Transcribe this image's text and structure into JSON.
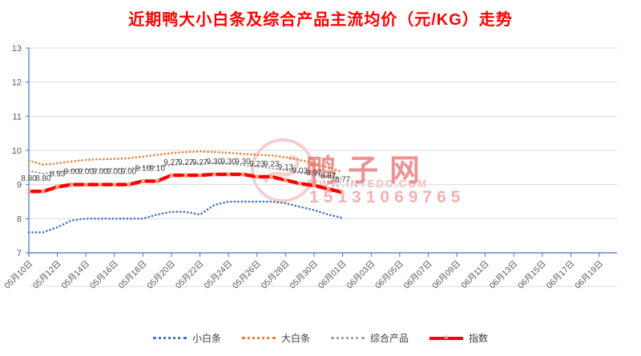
{
  "chart_data": {
    "type": "line",
    "title": "近期鸭大小白条及综合产品主流均价（元/KG）走势",
    "xlabel": "",
    "ylabel": "",
    "ylim": [
      7,
      13
    ],
    "y_ticks": [
      7,
      8,
      9,
      10,
      11,
      12,
      13
    ],
    "grid": true,
    "legend_position": "bottom",
    "x_tick_labels": [
      "05月10日",
      "05月12日",
      "05月14日",
      "05月16日",
      "05月18日",
      "05月20日",
      "05月22日",
      "05月24日",
      "05月26日",
      "05月28日",
      "05月30日",
      "06月01日",
      "06月03日",
      "06月05日",
      "06月07日",
      "06月09日",
      "06月11日",
      "06月13日",
      "06月15日",
      "06月17日",
      "06月19日"
    ],
    "x_axis_total_days": 41,
    "data_dates_span": "05月10日-06月01日",
    "series": [
      {
        "id": "xiao-bai-tiao",
        "name": "小白条",
        "color": "#4472C4",
        "style": "dotted",
        "values": [
          7.6,
          7.6,
          7.75,
          7.95,
          8.0,
          8.0,
          8.0,
          8.0,
          8.0,
          8.12,
          8.2,
          8.2,
          8.12,
          8.4,
          8.5,
          8.5,
          8.5,
          8.5,
          8.45,
          8.35,
          8.25,
          8.12,
          8.02
        ]
      },
      {
        "id": "da-bai-tiao",
        "name": "大白条",
        "color": "#ED7D31",
        "style": "dotted",
        "values": [
          9.7,
          9.58,
          9.62,
          9.68,
          9.72,
          9.74,
          9.75,
          9.77,
          9.82,
          9.87,
          9.92,
          9.95,
          9.97,
          9.95,
          9.93,
          9.9,
          9.87,
          9.85,
          9.8,
          9.72,
          9.62,
          9.5,
          9.37
        ]
      },
      {
        "id": "zong-he-chan-pin",
        "name": "综合产品",
        "color": "#A5A5A5",
        "style": "dotted",
        "values": [
          9.4,
          9.32,
          9.36,
          9.42,
          9.45,
          9.45,
          9.46,
          9.47,
          9.5,
          9.53,
          9.57,
          9.6,
          9.62,
          9.62,
          9.6,
          9.57,
          9.53,
          9.48,
          9.42,
          9.35,
          9.28,
          9.22,
          9.17
        ]
      },
      {
        "id": "zhi-shu",
        "name": "指数",
        "color": "#FF0000",
        "style": "solid-x",
        "values": [
          8.8,
          8.8,
          8.93,
          9.0,
          9.0,
          9.0,
          9.0,
          9.0,
          9.1,
          9.1,
          9.27,
          9.27,
          9.27,
          9.3,
          9.3,
          9.3,
          9.23,
          9.23,
          9.13,
          9.03,
          8.97,
          8.87,
          8.77
        ],
        "data_labels": [
          "8.80",
          "8.80",
          "8.93",
          "9.00",
          "9.00",
          "9.00",
          "9.00",
          "9.00",
          "9.10",
          "9.10",
          "9.27",
          "9.27",
          "9.27",
          "9.30",
          "9.30",
          "9.30",
          "9.23",
          "9.23",
          "9.13",
          "9.03",
          "8.97",
          "8.87",
          "8.77"
        ]
      }
    ],
    "colors": {
      "title": "#FF0000",
      "axis": "#4472C4",
      "grid": "#D9D9D9",
      "tick_text": "#595959",
      "label_text": "#404040",
      "marker_x": "#F8CBAD"
    }
  },
  "watermark": {
    "brand": "鸭子网",
    "site": "WWW.INTEDC.COM",
    "phone": "15131069765"
  }
}
